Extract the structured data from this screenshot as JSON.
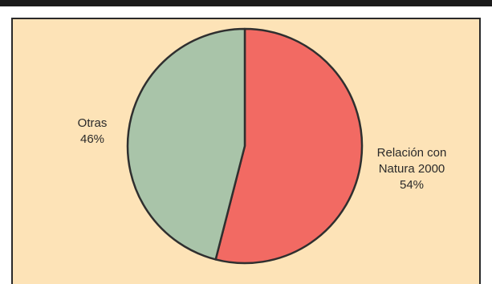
{
  "chart_data": {
    "type": "pie",
    "title": "",
    "slices": [
      {
        "label": "Relación con Natura 2000",
        "label_lines": [
          "Relación con",
          "Natura 2000"
        ],
        "value": 54,
        "value_text": "54%",
        "color": "#f26a63"
      },
      {
        "label": "Otras",
        "label_lines": [
          "Otras"
        ],
        "value": 46,
        "value_text": "46%",
        "color": "#a9c4a9"
      }
    ],
    "start_angle_deg": 0,
    "direction": "clockwise",
    "background": "#fde3b7",
    "outline_color": "#2f2f2f"
  }
}
